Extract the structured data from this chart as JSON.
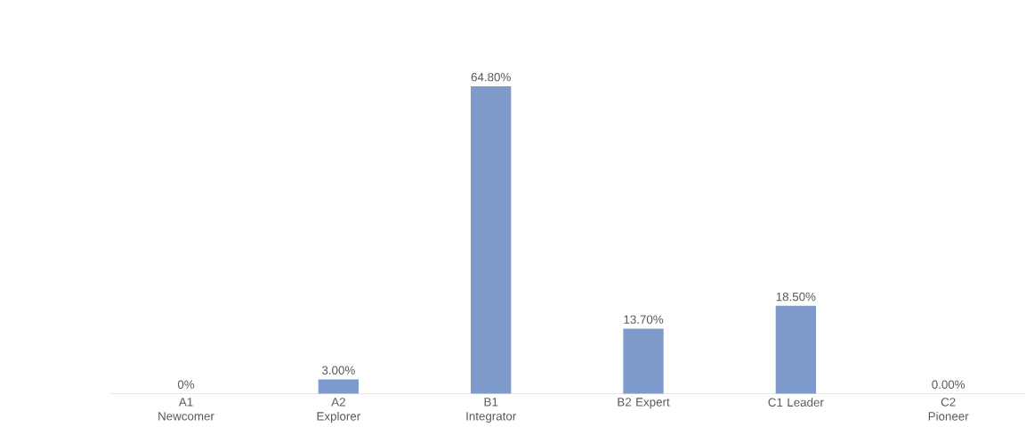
{
  "chart_data": {
    "type": "bar",
    "categories": [
      "A1 Newcomer",
      "A2 Explorer",
      "B1 Integrator",
      "B2 Expert",
      "C1 Leader",
      "C2 Pioneer"
    ],
    "values": [
      0,
      3.0,
      64.8,
      13.7,
      18.5,
      0.0
    ],
    "value_labels": [
      "0%",
      "3.00%",
      "64.80%",
      "13.70%",
      "18.50%",
      "0.00%"
    ],
    "color": "#7e9bcb"
  }
}
